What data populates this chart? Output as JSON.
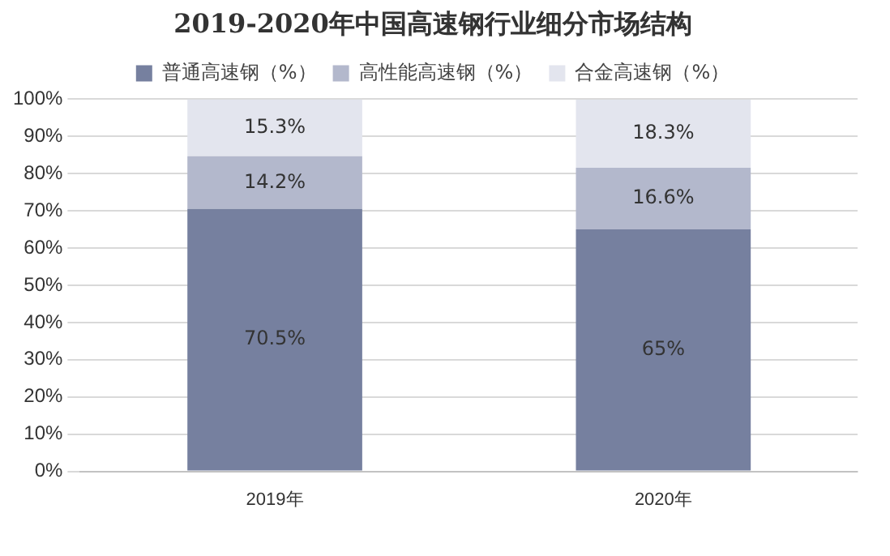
{
  "chart_data": {
    "type": "bar",
    "title": "2019-2020年中国高速钢行业细分市场结构",
    "categories": [
      "2019年",
      "2020年"
    ],
    "stacked": true,
    "grid": "y",
    "legend": "top",
    "ylim": [
      0,
      100
    ],
    "yticks": [
      {
        "value": 0,
        "label": "0%"
      },
      {
        "value": 10,
        "label": "10%"
      },
      {
        "value": 20,
        "label": "20%"
      },
      {
        "value": 30,
        "label": "30%"
      },
      {
        "value": 40,
        "label": "40%"
      },
      {
        "value": 50,
        "label": "50%"
      },
      {
        "value": 60,
        "label": "60%"
      },
      {
        "value": 70,
        "label": "70%"
      },
      {
        "value": 80,
        "label": "80%"
      },
      {
        "value": 90,
        "label": "90%"
      },
      {
        "value": 100,
        "label": "100%"
      }
    ],
    "series": [
      {
        "name": "普通高速钢（%）",
        "color": "#76809f",
        "values": [
          70.5,
          65
        ],
        "value_labels": [
          "70.5%",
          "65%"
        ]
      },
      {
        "name": "高性能高速钢（%）",
        "color": "#b3b8cc",
        "values": [
          14.2,
          16.6
        ],
        "value_labels": [
          "14.2%",
          "16.6%"
        ]
      },
      {
        "name": "合金高速钢（%）",
        "color": "#e3e5ee",
        "values": [
          15.3,
          18.3
        ],
        "value_labels": [
          "15.3%",
          "18.3%"
        ]
      }
    ]
  }
}
